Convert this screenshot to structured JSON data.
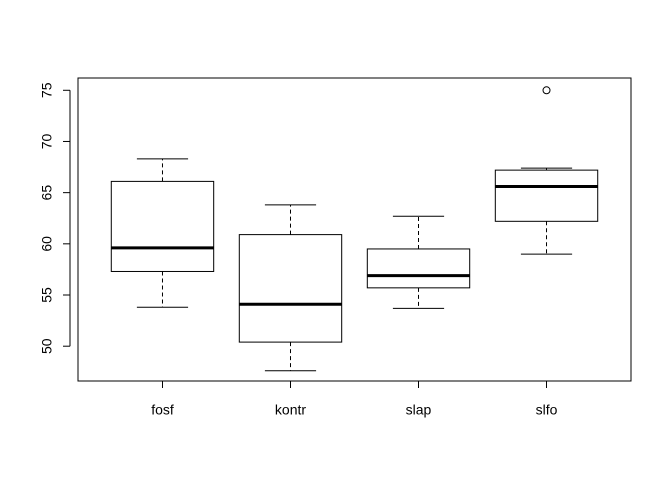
{
  "chart_data": {
    "type": "boxplot",
    "categories": [
      "fosf",
      "kontr",
      "slap",
      "slfo"
    ],
    "boxes": [
      {
        "whisker_low": 53.8,
        "q1": 57.3,
        "median": 59.6,
        "q3": 66.1,
        "whisker_high": 68.3,
        "outliers": []
      },
      {
        "whisker_low": 47.6,
        "q1": 50.4,
        "median": 54.1,
        "q3": 60.9,
        "whisker_high": 63.8,
        "outliers": []
      },
      {
        "whisker_low": 53.7,
        "q1": 55.7,
        "median": 56.9,
        "q3": 59.5,
        "whisker_high": 62.7,
        "outliers": []
      },
      {
        "whisker_low": 59.0,
        "q1": 62.2,
        "median": 65.6,
        "q3": 67.2,
        "whisker_high": 67.4,
        "outliers": [
          75.0
        ]
      }
    ],
    "ylim": [
      46.6,
      76.2
    ],
    "yticks": [
      50,
      55,
      60,
      65,
      70,
      75
    ]
  }
}
